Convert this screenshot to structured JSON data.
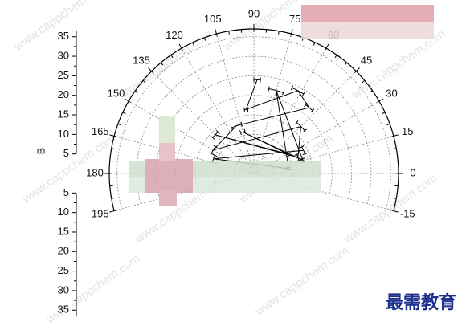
{
  "chart_data": {
    "type": "polar",
    "y_label": "B",
    "rlim": [
      0,
      37
    ],
    "rticks": [
      5,
      10,
      15,
      20,
      25,
      30,
      35
    ],
    "thetalim": [
      -15,
      195
    ],
    "thetaticks": [
      -15,
      0,
      15,
      30,
      45,
      60,
      75,
      90,
      105,
      120,
      135,
      150,
      165,
      180,
      195
    ],
    "grid": true,
    "color": "#000000",
    "series": [
      {
        "name": "B",
        "theta": [
          88,
          97,
          62,
          50,
          110,
          150,
          45,
          20,
          135,
          30,
          105,
          15,
          75,
          8,
          160,
          25
        ],
        "values": [
          24,
          16.5,
          24,
          22,
          13,
          12,
          17,
          12,
          14,
          10,
          11,
          13,
          22,
          9,
          11,
          14
        ],
        "errors": [
          2,
          1.5,
          4,
          3,
          6,
          5,
          5,
          4,
          4,
          3,
          3,
          2,
          5,
          2,
          5,
          4
        ]
      }
    ]
  },
  "watermark": "www.cappchem.com",
  "logo": "最需教育"
}
